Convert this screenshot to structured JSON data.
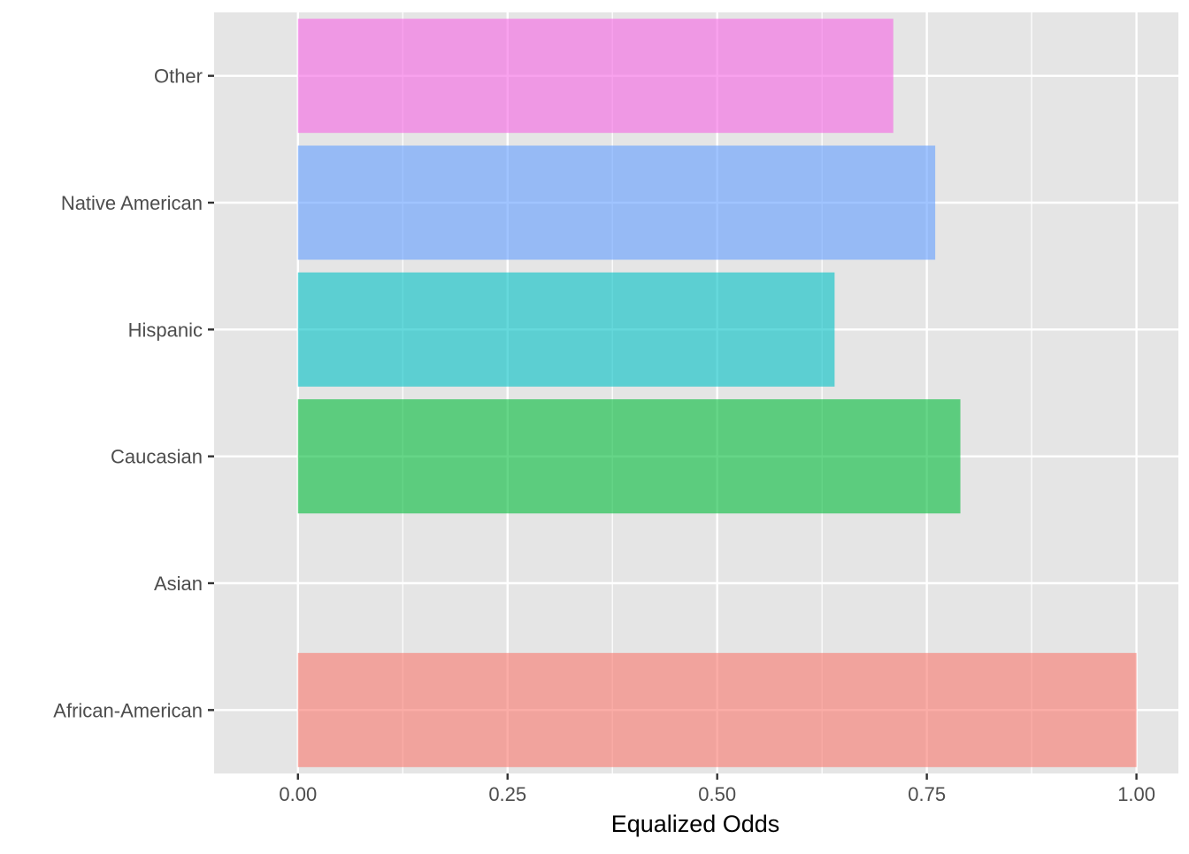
{
  "chart_data": {
    "type": "bar",
    "orientation": "horizontal",
    "categories": [
      "African-American",
      "Asian",
      "Caucasian",
      "Hispanic",
      "Native American",
      "Other"
    ],
    "values": [
      1.0,
      0.0,
      0.79,
      0.64,
      0.76,
      0.71
    ],
    "colors": [
      "#F8766D",
      "#B79F00",
      "#00BA38",
      "#00BFC4",
      "#619CFF",
      "#F564E3"
    ],
    "bar_opacity": 0.6,
    "title": "",
    "xlabel": "Equalized Odds",
    "ylabel": "",
    "xlim": [
      -0.1,
      1.05
    ],
    "x_ticks": [
      0,
      0.25,
      0.5,
      0.75,
      1
    ],
    "x_tick_labels": [
      "0.00",
      "0.25",
      "0.50",
      "0.75",
      "1.00"
    ],
    "grid": true,
    "legend": "none",
    "panel_background": "#E5E5E5",
    "grid_color": "#FFFFFF"
  }
}
